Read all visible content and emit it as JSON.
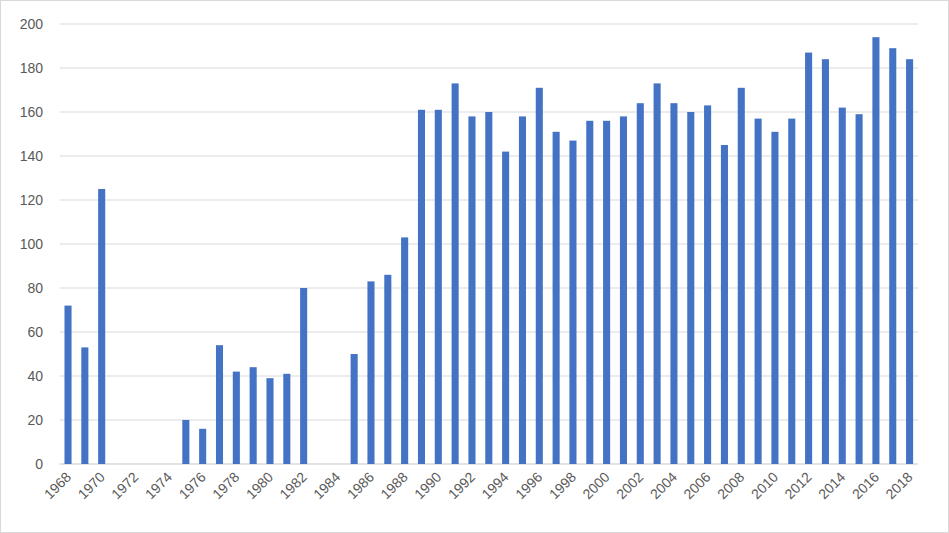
{
  "chart_data": {
    "type": "bar",
    "categories": [
      "1968",
      null,
      "1970",
      null,
      "1972",
      null,
      "1974",
      null,
      "1976",
      null,
      "1978",
      null,
      "1980",
      null,
      "1982",
      null,
      "1984",
      null,
      "1986",
      null,
      "1988",
      null,
      "1990",
      null,
      "1992",
      null,
      "1994",
      null,
      "1996",
      null,
      "1998",
      null,
      "2000",
      null,
      "2002",
      null,
      "2004",
      null,
      "2006",
      null,
      "2008",
      null,
      "2010",
      null,
      "2012",
      null,
      "2014",
      null,
      "2016",
      null,
      "2018"
    ],
    "values": [
      72,
      53,
      125,
      null,
      null,
      null,
      null,
      20,
      16,
      54,
      42,
      44,
      39,
      41,
      80,
      null,
      null,
      50,
      83,
      86,
      103,
      161,
      161,
      173,
      158,
      160,
      142,
      158,
      171,
      151,
      147,
      156,
      156,
      158,
      164,
      173,
      164,
      160,
      163,
      145,
      171,
      157,
      151,
      157,
      187,
      184,
      162,
      159,
      194,
      189,
      184
    ],
    "color": "#4472c4",
    "ylim": [
      0,
      200
    ],
    "yticks": [
      0,
      20,
      40,
      60,
      80,
      100,
      120,
      140,
      160,
      180,
      200
    ],
    "grid": true
  }
}
